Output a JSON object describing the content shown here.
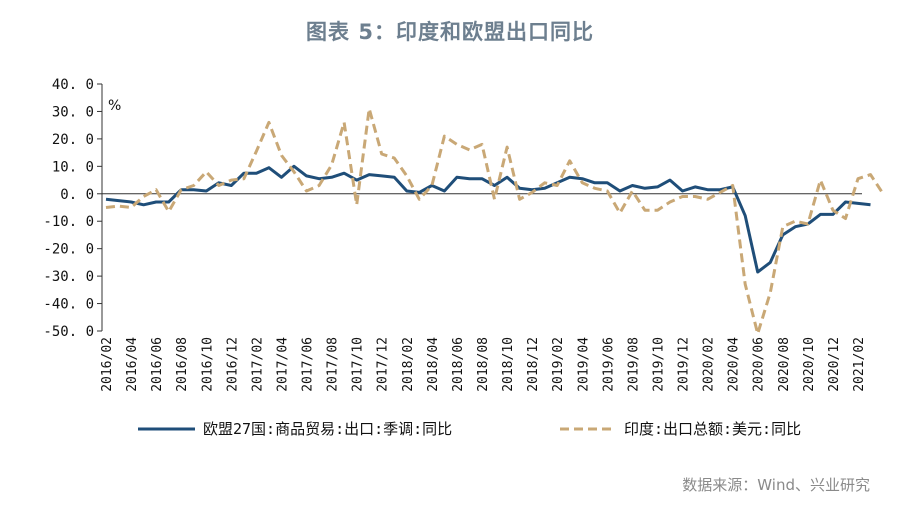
{
  "title": "图表 5：印度和欧盟出口同比",
  "source": "数据来源：Wind、兴业研究",
  "chart_data": {
    "type": "line",
    "title": "图表 5：印度和欧盟出口同比",
    "unit_label": "%",
    "ylim": [
      -50,
      40
    ],
    "yticks": [
      "40. 0",
      "30. 0",
      "20. 0",
      "10. 0",
      "0. 0",
      "-10. 0",
      "-20. 0",
      "-30. 0",
      "-40. 0",
      "-50. 0"
    ],
    "ytick_values": [
      40,
      30,
      20,
      10,
      0,
      -10,
      -20,
      -30,
      -40,
      -50
    ],
    "xtick_labels": [
      "2016/02",
      "2016/04",
      "2016/06",
      "2016/08",
      "2016/10",
      "2016/12",
      "2017/02",
      "2017/04",
      "2017/06",
      "2017/08",
      "2017/10",
      "2017/12",
      "2018/02",
      "2018/04",
      "2018/06",
      "2018/08",
      "2018/10",
      "2018/12",
      "2019/02",
      "2019/04",
      "2019/06",
      "2019/08",
      "2019/10",
      "2019/12",
      "2020/02",
      "2020/04",
      "2020/06",
      "2020/08",
      "2020/10",
      "2020/12",
      "2021/02"
    ],
    "x_start": "2016/02",
    "legend_position": "bottom",
    "series": [
      {
        "name": "欧盟27国:商品贸易:出口:季调:同比",
        "color": "#1f4e79",
        "style": "solid",
        "values": [
          -2,
          -2.5,
          -3,
          -4,
          -3,
          -3,
          1.5,
          1.5,
          1,
          4,
          3,
          7.5,
          7.5,
          9.5,
          6,
          10,
          6.5,
          5.5,
          6,
          7.5,
          5,
          7,
          6.5,
          6,
          1,
          0.5,
          3,
          1,
          6,
          5.5,
          5.5,
          3,
          6,
          2,
          1.5,
          2,
          4,
          6,
          5.5,
          4,
          4,
          1,
          3,
          2,
          2.5,
          5,
          1,
          2.5,
          1.5,
          1.5,
          2.5,
          -8,
          -28.5,
          -25,
          -15,
          -12,
          -11,
          -7.5,
          -7.5,
          -3,
          -3.5,
          -4
        ]
      },
      {
        "name": "印度:出口总额:美元:同比",
        "color": "#c9a876",
        "style": "dashed",
        "values": [
          -5,
          -4.5,
          -5,
          -1,
          1.5,
          -6.5,
          1.5,
          3,
          8,
          3,
          5,
          5.5,
          15.5,
          26,
          14,
          8,
          1,
          3,
          10.5,
          26,
          -4,
          31,
          14.5,
          13,
          6.5,
          -2,
          3,
          21,
          18,
          16,
          18,
          -2,
          17,
          -2,
          0.5,
          4,
          3,
          12,
          4,
          2,
          1,
          -7,
          1,
          -6,
          -6,
          -3,
          -1,
          -1,
          -2,
          0.5,
          3,
          -33,
          -51,
          -36,
          -12,
          -10,
          -11,
          5,
          -6,
          -9,
          5.5,
          7,
          0
        ]
      }
    ]
  }
}
